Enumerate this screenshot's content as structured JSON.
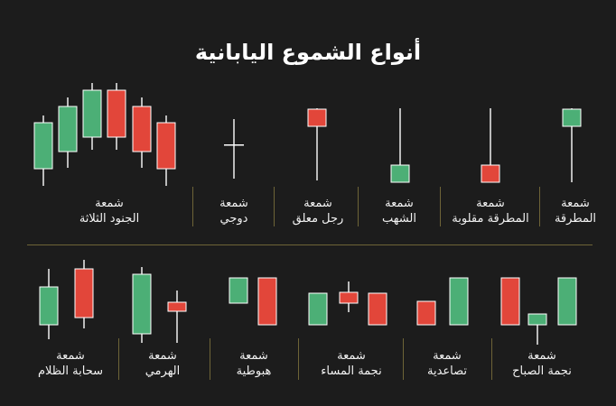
{
  "title": "أنواع الشموع اليابانية",
  "colors": {
    "background": "#1c1c1c",
    "bullish": "#4caf76",
    "bearish": "#e2463a",
    "wick": "#ffffff",
    "separator": "#6e6437"
  },
  "top_row": [
    {
      "line1": "شمعة",
      "line2": "الجنود الثلاثة"
    },
    {
      "line1": "شمعة",
      "line2": "دوجي"
    },
    {
      "line1": "شمعة",
      "line2": "رجل معلق"
    },
    {
      "line1": "شمعة",
      "line2": "الشهب"
    },
    {
      "line1": "شمعة",
      "line2": "المطرقة مقلوبة"
    },
    {
      "line1": "شمعة",
      "line2": "المطرقة"
    }
  ],
  "bottom_row": [
    {
      "line1": "شمعة",
      "line2": "سحابة الظلام"
    },
    {
      "line1": "شمعة",
      "line2": "الهرمي"
    },
    {
      "line1": "شمعة",
      "line2": "هبوطية"
    },
    {
      "line1": "شمعة",
      "line2": "نجمة المساء"
    },
    {
      "line1": "شمعة",
      "line2": "تصاعدية"
    },
    {
      "line1": "شمعة",
      "line2": "نجمة الصباح"
    }
  ]
}
